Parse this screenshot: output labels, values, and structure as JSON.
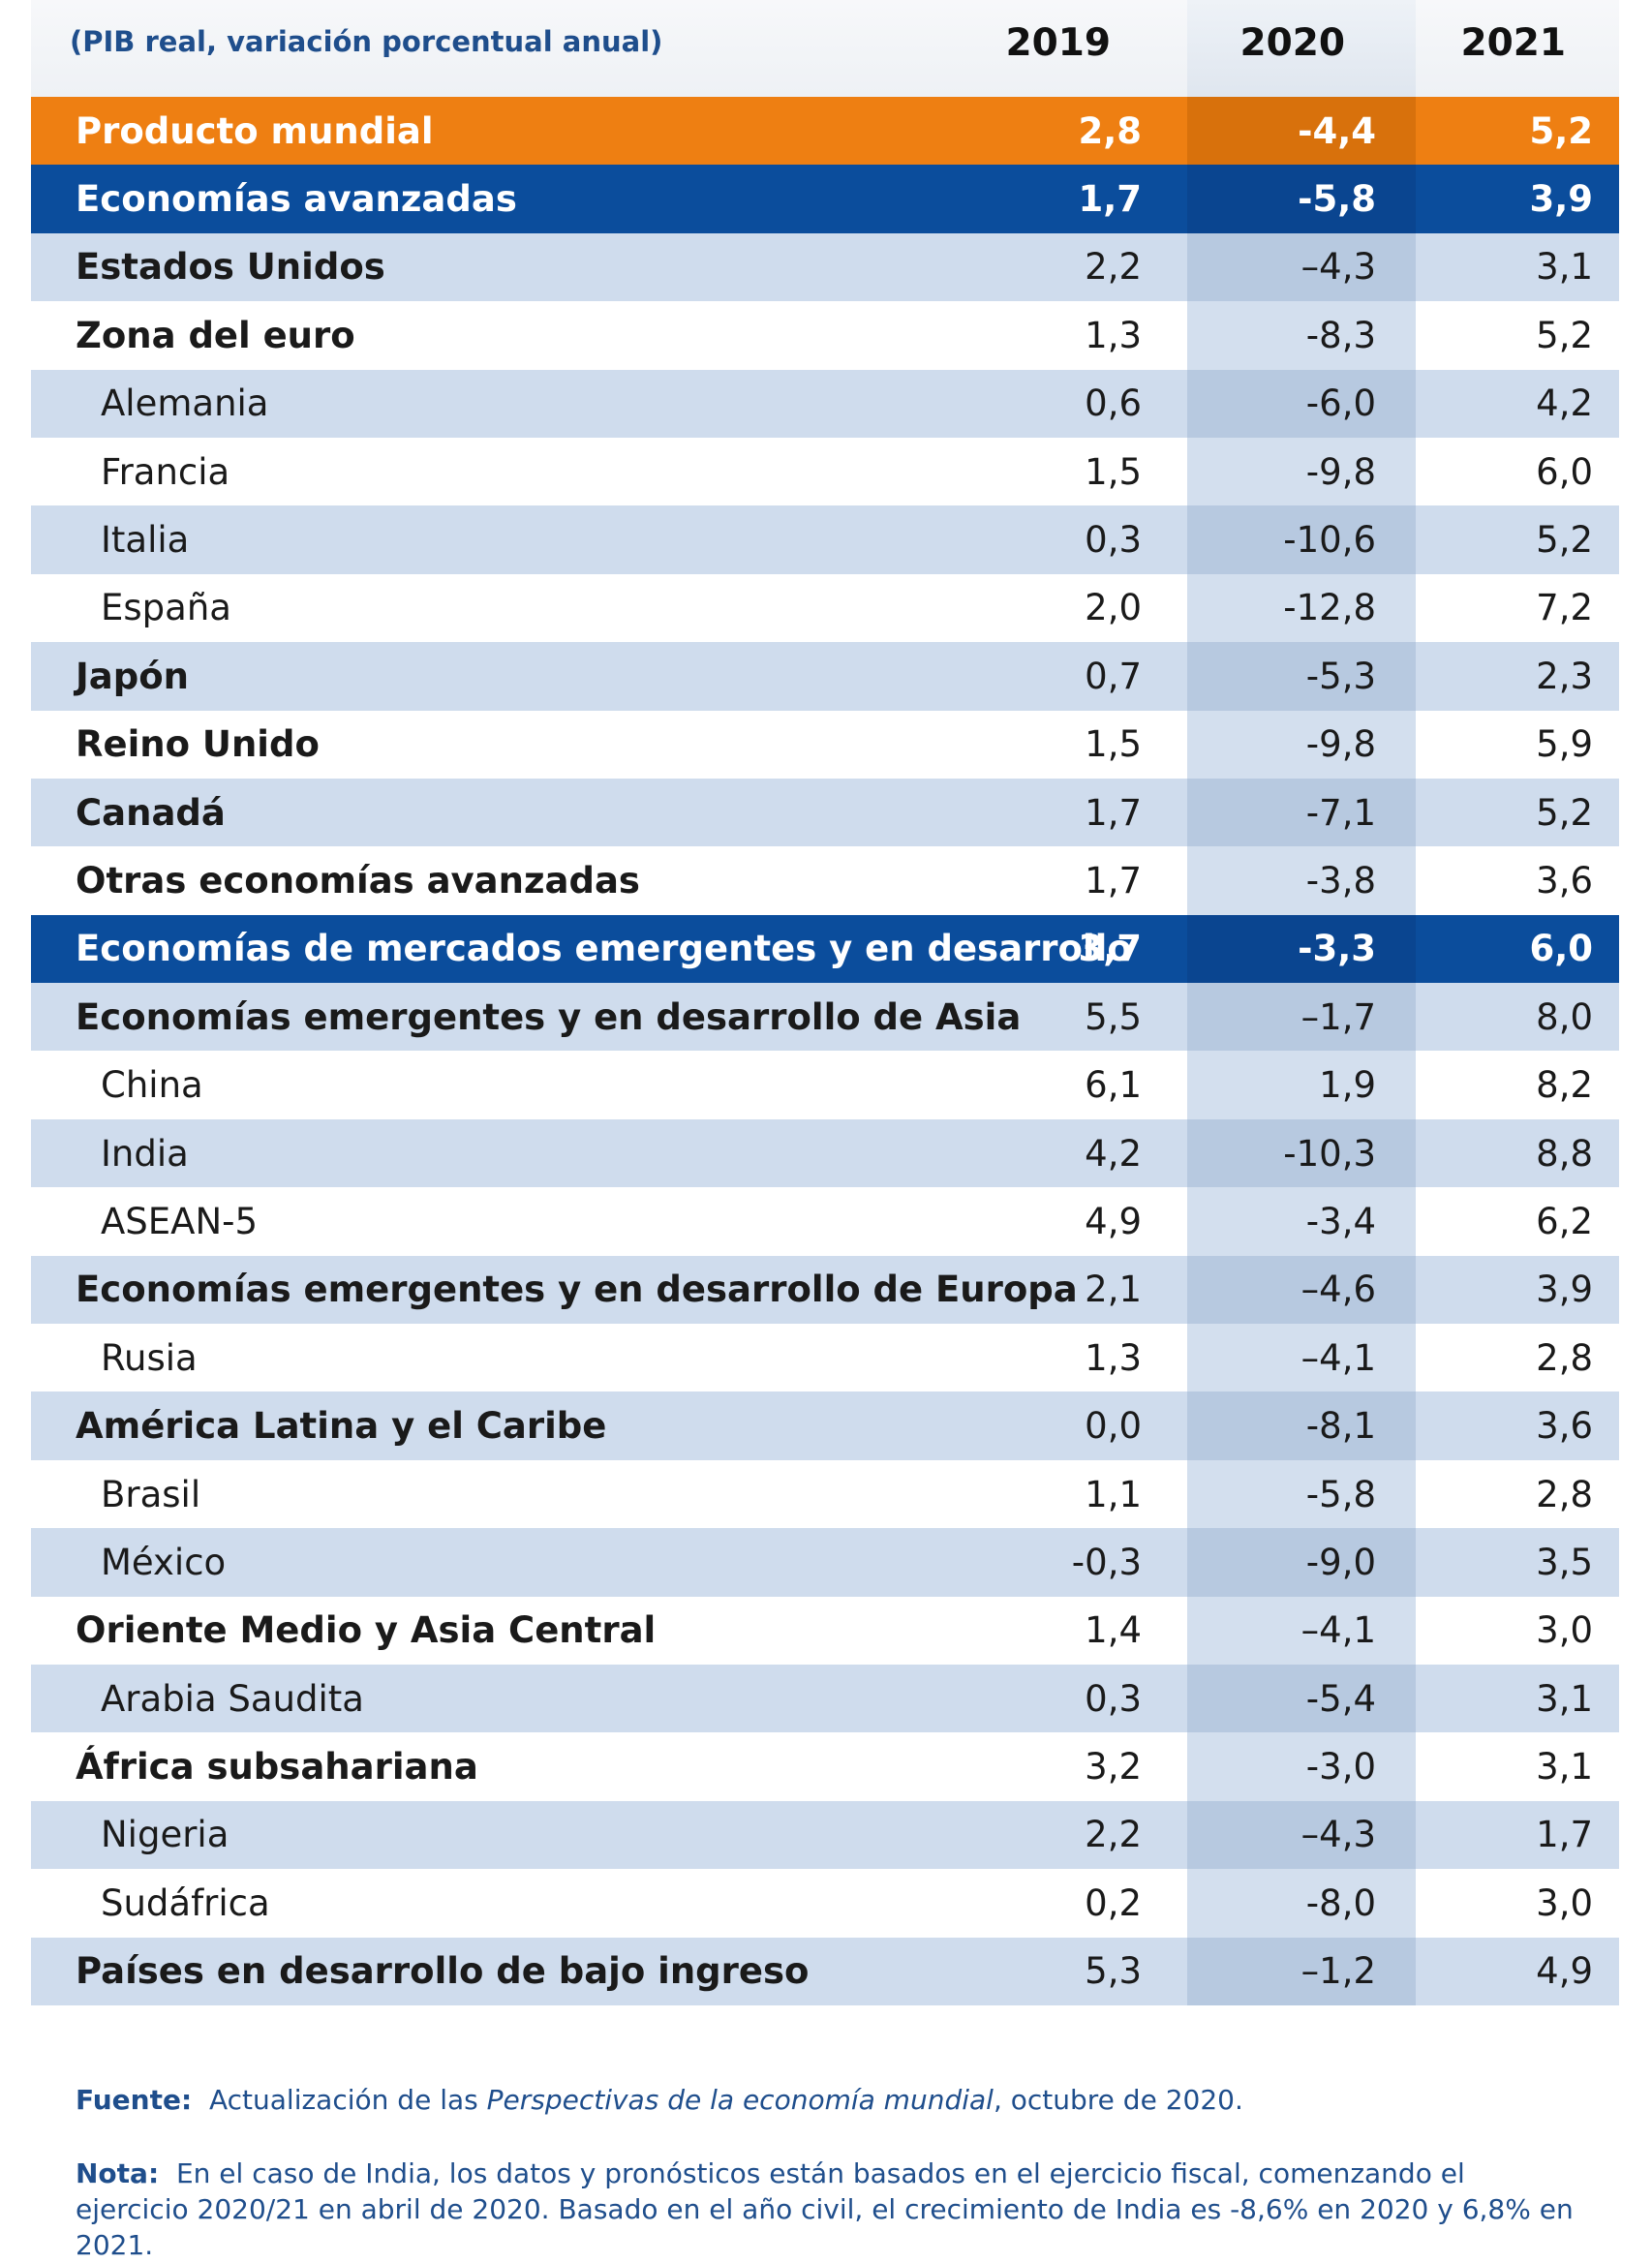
{
  "header": {
    "unit_label": "(PIB real, variación porcentual anual)",
    "years": [
      "2019",
      "2020",
      "2021"
    ]
  },
  "rows": [
    {
      "label": "Producto mundial",
      "style": "orange",
      "indent": 0,
      "bold": true,
      "v2019": "2,8",
      "v2020": "-4,4",
      "v2021": "5,2"
    },
    {
      "label": "Economías avanzadas",
      "style": "navy",
      "indent": 0,
      "bold": true,
      "v2019": "1,7",
      "v2020": "-5,8",
      "v2021": "3,9"
    },
    {
      "label": "Estados Unidos",
      "style": "light",
      "indent": 0,
      "bold": true,
      "v2019": "2,2",
      "v2020": "–4,3",
      "v2021": "3,1"
    },
    {
      "label": "Zona del euro",
      "style": "white",
      "indent": 0,
      "bold": true,
      "v2019": "1,3",
      "v2020": "-8,3",
      "v2021": "5,2"
    },
    {
      "label": "Alemania",
      "style": "light",
      "indent": 1,
      "bold": false,
      "v2019": "0,6",
      "v2020": "-6,0",
      "v2021": "4,2"
    },
    {
      "label": "Francia",
      "style": "white",
      "indent": 1,
      "bold": false,
      "v2019": "1,5",
      "v2020": "-9,8",
      "v2021": "6,0"
    },
    {
      "label": "Italia",
      "style": "light",
      "indent": 1,
      "bold": false,
      "v2019": "0,3",
      "v2020": "-10,6",
      "v2021": "5,2"
    },
    {
      "label": "España",
      "style": "white",
      "indent": 1,
      "bold": false,
      "v2019": "2,0",
      "v2020": "-12,8",
      "v2021": "7,2"
    },
    {
      "label": "Japón",
      "style": "light",
      "indent": 0,
      "bold": true,
      "v2019": "0,7",
      "v2020": "-5,3",
      "v2021": "2,3"
    },
    {
      "label": "Reino Unido",
      "style": "white",
      "indent": 0,
      "bold": true,
      "v2019": "1,5",
      "v2020": "-9,8",
      "v2021": "5,9"
    },
    {
      "label": "Canadá",
      "style": "light",
      "indent": 0,
      "bold": true,
      "v2019": "1,7",
      "v2020": "-7,1",
      "v2021": "5,2"
    },
    {
      "label": "Otras economías avanzadas",
      "style": "white",
      "indent": 0,
      "bold": true,
      "v2019": "1,7",
      "v2020": "-3,8",
      "v2021": "3,6"
    },
    {
      "label": "Economías de mercados emergentes y en desarrollo",
      "style": "navy",
      "indent": 0,
      "bold": true,
      "v2019": "3,7",
      "v2020": "-3,3",
      "v2021": "6,0"
    },
    {
      "label": "Economías emergentes y en desarrollo de Asia",
      "style": "light",
      "indent": 0,
      "bold": true,
      "v2019": "5,5",
      "v2020": "–1,7",
      "v2021": "8,0"
    },
    {
      "label": "China",
      "style": "white",
      "indent": 1,
      "bold": false,
      "v2019": "6,1",
      "v2020": "1,9",
      "v2021": "8,2"
    },
    {
      "label": "India",
      "style": "light",
      "indent": 1,
      "bold": false,
      "v2019": "4,2",
      "v2020": "-10,3",
      "v2021": "8,8"
    },
    {
      "label": "ASEAN-5",
      "style": "white",
      "indent": 1,
      "bold": false,
      "v2019": "4,9",
      "v2020": "-3,4",
      "v2021": "6,2"
    },
    {
      "label": "Economías emergentes y en desarrollo de Europa",
      "style": "light",
      "indent": 0,
      "bold": true,
      "v2019": "2,1",
      "v2020": "–4,6",
      "v2021": "3,9"
    },
    {
      "label": "Rusia",
      "style": "white",
      "indent": 1,
      "bold": false,
      "v2019": "1,3",
      "v2020": "–4,1",
      "v2021": "2,8"
    },
    {
      "label": "América Latina y el Caribe",
      "style": "light",
      "indent": 0,
      "bold": true,
      "v2019": "0,0",
      "v2020": "-8,1",
      "v2021": "3,6"
    },
    {
      "label": "Brasil",
      "style": "white",
      "indent": 1,
      "bold": false,
      "v2019": "1,1",
      "v2020": "-5,8",
      "v2021": "2,8"
    },
    {
      "label": "México",
      "style": "light",
      "indent": 1,
      "bold": false,
      "v2019": "-0,3",
      "v2020": "-9,0",
      "v2021": "3,5"
    },
    {
      "label": "Oriente Medio y Asia Central",
      "style": "white",
      "indent": 0,
      "bold": true,
      "v2019": "1,4",
      "v2020": "–4,1",
      "v2021": "3,0"
    },
    {
      "label": "Arabia Saudita",
      "style": "light",
      "indent": 1,
      "bold": false,
      "v2019": "0,3",
      "v2020": "-5,4",
      "v2021": "3,1"
    },
    {
      "label": "África subsahariana",
      "style": "white",
      "indent": 0,
      "bold": true,
      "v2019": "3,2",
      "v2020": "-3,0",
      "v2021": "3,1"
    },
    {
      "label": "Nigeria",
      "style": "light",
      "indent": 1,
      "bold": false,
      "v2019": "2,2",
      "v2020": "–4,3",
      "v2021": "1,7"
    },
    {
      "label": "Sudáfrica",
      "style": "white",
      "indent": 1,
      "bold": false,
      "v2019": "0,2",
      "v2020": "-8,0",
      "v2021": "3,0"
    },
    {
      "label": "Países en desarrollo de bajo ingreso",
      "style": "light",
      "indent": 0,
      "bold": true,
      "v2019": "5,3",
      "v2020": "–1,2",
      "v2021": "4,9"
    }
  ],
  "source": {
    "tag": "Fuente:",
    "text_before": "Actualización de las ",
    "text_italic": "Perspectivas de la economía mundial",
    "text_after": ", octubre de 2020."
  },
  "note": {
    "tag": "Nota:",
    "text": "En el caso de India, los datos y pronósticos están basados en el ejercicio fiscal, comenzando el ejercicio 2020/21 en abril de 2020. Basado en el año civil, el crecimiento de India es -8,6% en 2020 y 6,8% en 2021."
  },
  "colors": {
    "orange_row": "#ee7f12",
    "navy_row": "#0b4d9c",
    "light_row": "#cfdced",
    "note_text": "#1f4e8c"
  }
}
